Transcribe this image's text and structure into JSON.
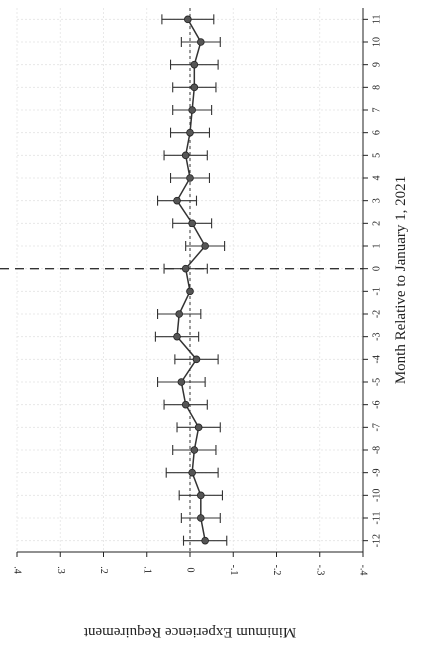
{
  "chart_data": {
    "type": "line",
    "orientation": "rotated-90-clockwise",
    "title": "",
    "xlabel": "Month Relative to January 1, 2021",
    "ylabel": "Minimum Experience Requirement",
    "x_ticks": [
      -12,
      -11,
      -10,
      -9,
      -8,
      -7,
      -6,
      -5,
      -4,
      -3,
      -2,
      -1,
      0,
      1,
      2,
      3,
      4,
      5,
      6,
      7,
      8,
      9,
      10,
      11
    ],
    "x_range": [
      -12.5,
      11.5
    ],
    "y_ticks": [
      0.4,
      0.3,
      0.2,
      0.1,
      0,
      -0.1,
      -0.2,
      -0.3,
      -0.4
    ],
    "y_tick_labels": [
      ".4",
      ".3",
      ".2",
      ".1",
      "0",
      "-.1",
      "-.2",
      "-.3",
      "-.4"
    ],
    "y_range": [
      -0.4,
      0.4
    ],
    "grid": true,
    "reference_lines": {
      "y": 0,
      "x": 0
    },
    "series": [
      {
        "x": [
          -12,
          -11,
          -10,
          -9,
          -8,
          -7,
          -6,
          -5,
          -4,
          -3,
          -2,
          -1,
          0,
          1,
          2,
          3,
          4,
          5,
          6,
          7,
          8,
          9,
          10,
          11
        ],
        "y": [
          -0.035,
          -0.025,
          -0.025,
          -0.005,
          -0.01,
          -0.02,
          0.01,
          0.02,
          -0.015,
          0.03,
          0.025,
          0.0,
          0.01,
          -0.035,
          -0.005,
          0.03,
          0.0,
          0.01,
          0.0,
          -0.005,
          -0.01,
          -0.01,
          -0.025,
          0.005
        ],
        "low": [
          -0.085,
          -0.07,
          -0.075,
          -0.065,
          -0.06,
          -0.07,
          -0.04,
          -0.035,
          -0.065,
          -0.02,
          -0.025,
          null,
          -0.04,
          -0.08,
          -0.05,
          -0.015,
          -0.045,
          -0.04,
          -0.045,
          -0.05,
          -0.06,
          -0.065,
          -0.07,
          -0.055
        ],
        "high": [
          0.015,
          0.02,
          0.025,
          0.055,
          0.04,
          0.03,
          0.06,
          0.075,
          0.035,
          0.08,
          0.075,
          null,
          0.06,
          0.01,
          0.04,
          0.075,
          0.045,
          0.06,
          0.045,
          0.04,
          0.04,
          0.045,
          0.02,
          0.065
        ]
      }
    ]
  }
}
